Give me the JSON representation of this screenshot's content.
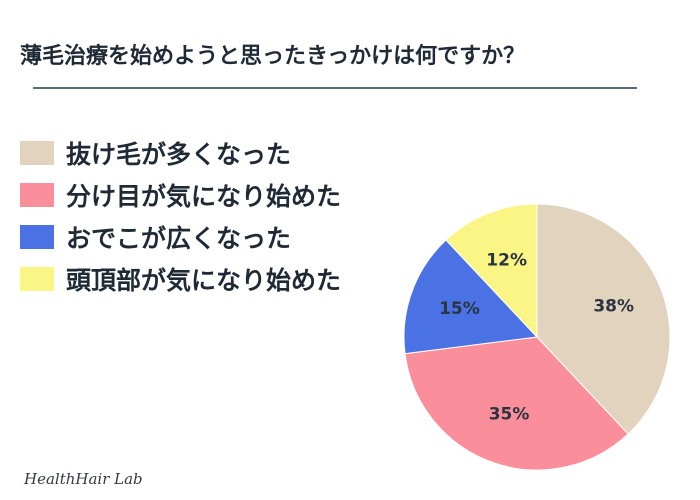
{
  "title": "薄毛治療を始めようと思ったきっかけは何ですか？",
  "brand": "HealthHair Lab",
  "chart_data": {
    "type": "pie",
    "title": "薄毛治療を始めようと思ったきっかけは何ですか？",
    "legend_position": "left",
    "slices": [
      {
        "label": "抜け毛が多くなった",
        "value": 38,
        "display": "38%",
        "color": "#e1d3be"
      },
      {
        "label": "分け目が気になり始めた",
        "value": 35,
        "display": "35%",
        "color": "#fb8e9b"
      },
      {
        "label": "おでこが広くなった",
        "value": 15,
        "display": "15%",
        "color": "#4a72e5"
      },
      {
        "label": "頭頂部が気になり始めた",
        "value": 12,
        "display": "12%",
        "color": "#fbf585"
      }
    ]
  }
}
